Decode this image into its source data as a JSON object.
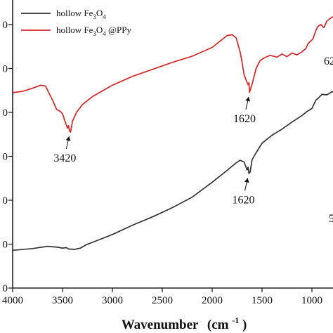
{
  "chart_data": {
    "type": "line",
    "xlabel": {
      "main": "Wavenumber",
      "unit_open": "(cm",
      "unit_exp": "-1",
      "unit_close": ")"
    },
    "xlim": [
      4000,
      700
    ],
    "ylim": [
      0,
      6
    ],
    "x_ticks": [
      "4000",
      "3500",
      "3000",
      "2500",
      "2000",
      "1500",
      "1000"
    ],
    "y_tick_labels": [
      "0",
      "0",
      "0",
      "0",
      "0",
      "0",
      "0"
    ],
    "grid": false,
    "legend_position": "top-left",
    "series": [
      {
        "id": "fe3o4",
        "name": "hollow Fe3O4",
        "name_parts": [
          "hollow Fe",
          "3",
          "O",
          "4",
          ""
        ],
        "color": "#333333",
        "points": [
          [
            4000,
            0.86
          ],
          [
            3800,
            0.9
          ],
          [
            3650,
            0.95
          ],
          [
            3550,
            0.93
          ],
          [
            3500,
            0.91
          ],
          [
            3460,
            0.92
          ],
          [
            3440,
            0.89
          ],
          [
            3380,
            0.88
          ],
          [
            3320,
            0.91
          ],
          [
            3260,
            0.99
          ],
          [
            3200,
            1.04
          ],
          [
            3000,
            1.22
          ],
          [
            2800,
            1.43
          ],
          [
            2600,
            1.62
          ],
          [
            2400,
            1.83
          ],
          [
            2200,
            2.07
          ],
          [
            2000,
            2.41
          ],
          [
            1850,
            2.68
          ],
          [
            1760,
            2.85
          ],
          [
            1720,
            2.91
          ],
          [
            1680,
            2.87
          ],
          [
            1650,
            2.69
          ],
          [
            1640,
            2.75
          ],
          [
            1632,
            2.61
          ],
          [
            1620,
            2.64
          ],
          [
            1600,
            2.92
          ],
          [
            1560,
            3.08
          ],
          [
            1500,
            3.3
          ],
          [
            1400,
            3.48
          ],
          [
            1300,
            3.62
          ],
          [
            1200,
            3.78
          ],
          [
            1100,
            3.93
          ],
          [
            1050,
            4.02
          ],
          [
            1000,
            4.09
          ],
          [
            960,
            4.28
          ],
          [
            930,
            4.34
          ],
          [
            900,
            4.41
          ],
          [
            850,
            4.4
          ],
          [
            800,
            4.47
          ],
          [
            760,
            4.46
          ],
          [
            720,
            4.42
          ],
          [
            700,
            4.39
          ]
        ]
      },
      {
        "id": "fe3o4-ppy",
        "name": "hollow Fe3O4 @PPy",
        "name_parts": [
          "hollow Fe",
          "3",
          "O",
          "4",
          " @PPy"
        ],
        "color": "#d62728",
        "points": [
          [
            4000,
            4.45
          ],
          [
            3900,
            4.48
          ],
          [
            3800,
            4.55
          ],
          [
            3720,
            4.62
          ],
          [
            3670,
            4.6
          ],
          [
            3640,
            4.46
          ],
          [
            3600,
            4.28
          ],
          [
            3560,
            4.07
          ],
          [
            3520,
            4.02
          ],
          [
            3500,
            3.97
          ],
          [
            3470,
            3.76
          ],
          [
            3450,
            3.64
          ],
          [
            3440,
            3.7
          ],
          [
            3430,
            3.58
          ],
          [
            3420,
            3.55
          ],
          [
            3400,
            3.8
          ],
          [
            3360,
            4.0
          ],
          [
            3300,
            4.18
          ],
          [
            3200,
            4.36
          ],
          [
            3000,
            4.62
          ],
          [
            2800,
            4.82
          ],
          [
            2600,
            4.98
          ],
          [
            2400,
            5.14
          ],
          [
            2200,
            5.28
          ],
          [
            2000,
            5.48
          ],
          [
            1850,
            5.75
          ],
          [
            1800,
            5.77
          ],
          [
            1760,
            5.7
          ],
          [
            1720,
            5.38
          ],
          [
            1700,
            5.14
          ],
          [
            1680,
            4.86
          ],
          [
            1660,
            4.74
          ],
          [
            1640,
            4.63
          ],
          [
            1632,
            4.68
          ],
          [
            1625,
            4.46
          ],
          [
            1620,
            4.5
          ],
          [
            1600,
            4.64
          ],
          [
            1560,
            5.0
          ],
          [
            1520,
            5.18
          ],
          [
            1480,
            5.24
          ],
          [
            1420,
            5.3
          ],
          [
            1350,
            5.26
          ],
          [
            1300,
            5.33
          ],
          [
            1250,
            5.27
          ],
          [
            1200,
            5.35
          ],
          [
            1150,
            5.31
          ],
          [
            1100,
            5.38
          ],
          [
            1060,
            5.46
          ],
          [
            1040,
            5.56
          ],
          [
            1010,
            5.63
          ],
          [
            990,
            5.67
          ],
          [
            960,
            5.87
          ],
          [
            940,
            5.96
          ],
          [
            910,
            6.0
          ],
          [
            880,
            5.93
          ],
          [
            850,
            6.08
          ],
          [
            800,
            6.17
          ],
          [
            750,
            6.18
          ],
          [
            700,
            6.17
          ]
        ]
      }
    ],
    "annotations": [
      {
        "id": "ppy-3420",
        "text": "3420",
        "x": 3420,
        "y": 3.55,
        "series": "fe3o4-ppy"
      },
      {
        "id": "ppy-1620",
        "text": "1620",
        "x": 1620,
        "y": 4.45,
        "series": "fe3o4-ppy"
      },
      {
        "id": "fe-1620",
        "text": "1620",
        "x": 1630,
        "y": 2.6,
        "series": "fe3o4"
      }
    ],
    "edge_labels": [
      {
        "id": "ppy-right-partial",
        "text": "62"
      },
      {
        "id": "fe-right-partial",
        "text": "5"
      }
    ]
  }
}
